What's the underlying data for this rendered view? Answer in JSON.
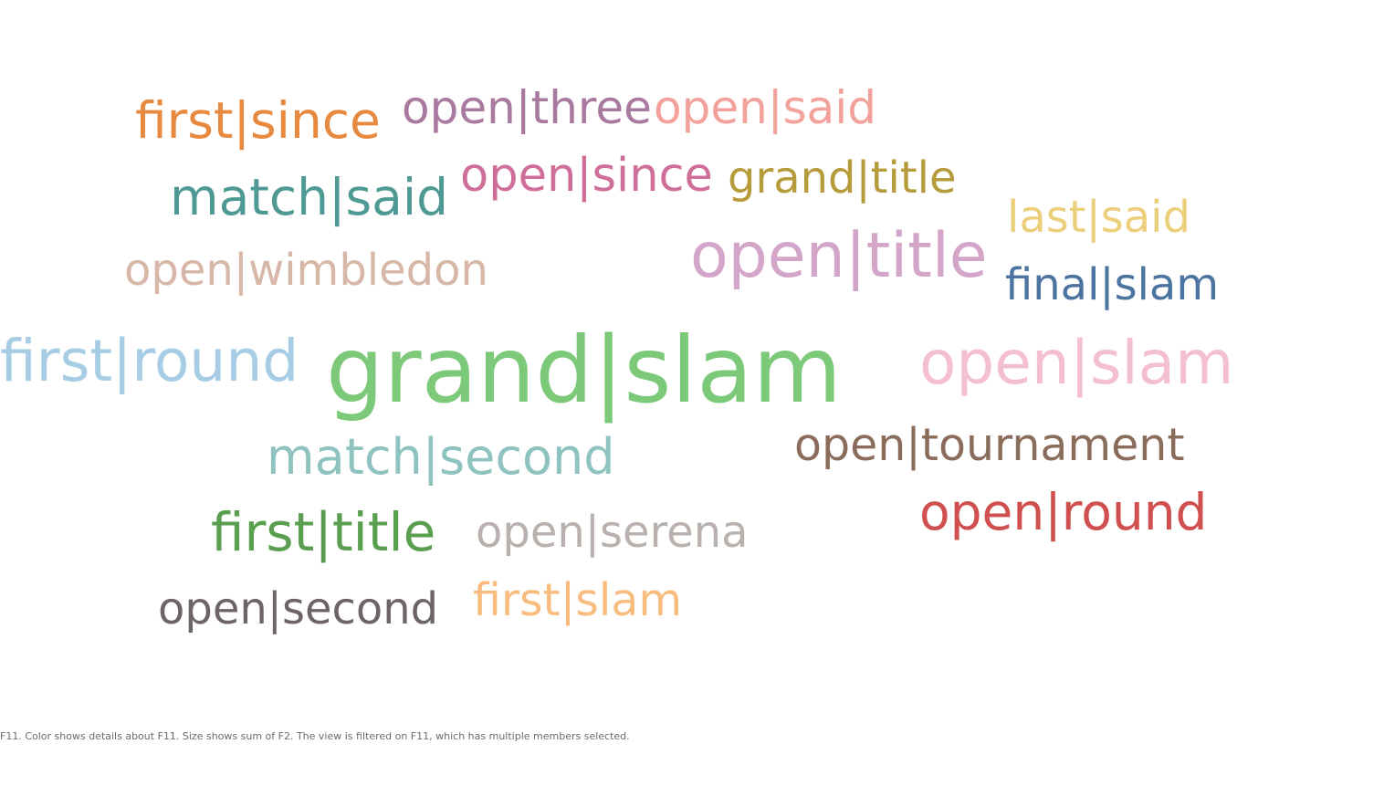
{
  "chart_data": {
    "type": "word-cloud",
    "words": [
      {
        "text": "grand|slam",
        "color": "#7dc97a"
      },
      {
        "text": "open|slam",
        "color": "#f4bfd2"
      },
      {
        "text": "first|round",
        "color": "#a6cde4"
      },
      {
        "text": "open|title",
        "color": "#d3a5c9"
      },
      {
        "text": "first|since",
        "color": "#e7893e"
      },
      {
        "text": "match|said",
        "color": "#4e9993"
      },
      {
        "text": "first|title",
        "color": "#5a9e50"
      },
      {
        "text": "open|round",
        "color": "#d04f4f"
      },
      {
        "text": "match|second",
        "color": "#8ec3bf"
      },
      {
        "text": "open|since",
        "color": "#cf6e98"
      },
      {
        "text": "open|tournament",
        "color": "#8a6c5a"
      },
      {
        "text": "open|three",
        "color": "#a979a0"
      },
      {
        "text": "open|said",
        "color": "#f2a19b"
      },
      {
        "text": "grand|title",
        "color": "#b69b3a"
      },
      {
        "text": "final|slam",
        "color": "#4b74a0"
      },
      {
        "text": "open|second",
        "color": "#6d6466"
      },
      {
        "text": "open|wimbledon",
        "color": "#d6b7a8"
      },
      {
        "text": "open|serena",
        "color": "#b8b1ad"
      },
      {
        "text": "last|said",
        "color": "#ebcf7b"
      },
      {
        "text": "first|slam",
        "color": "#f8bc7e"
      }
    ]
  },
  "footnote": "F11.  Color shows details about F11.  Size shows sum of F2. The view is filtered on F11, which has multiple members selected."
}
